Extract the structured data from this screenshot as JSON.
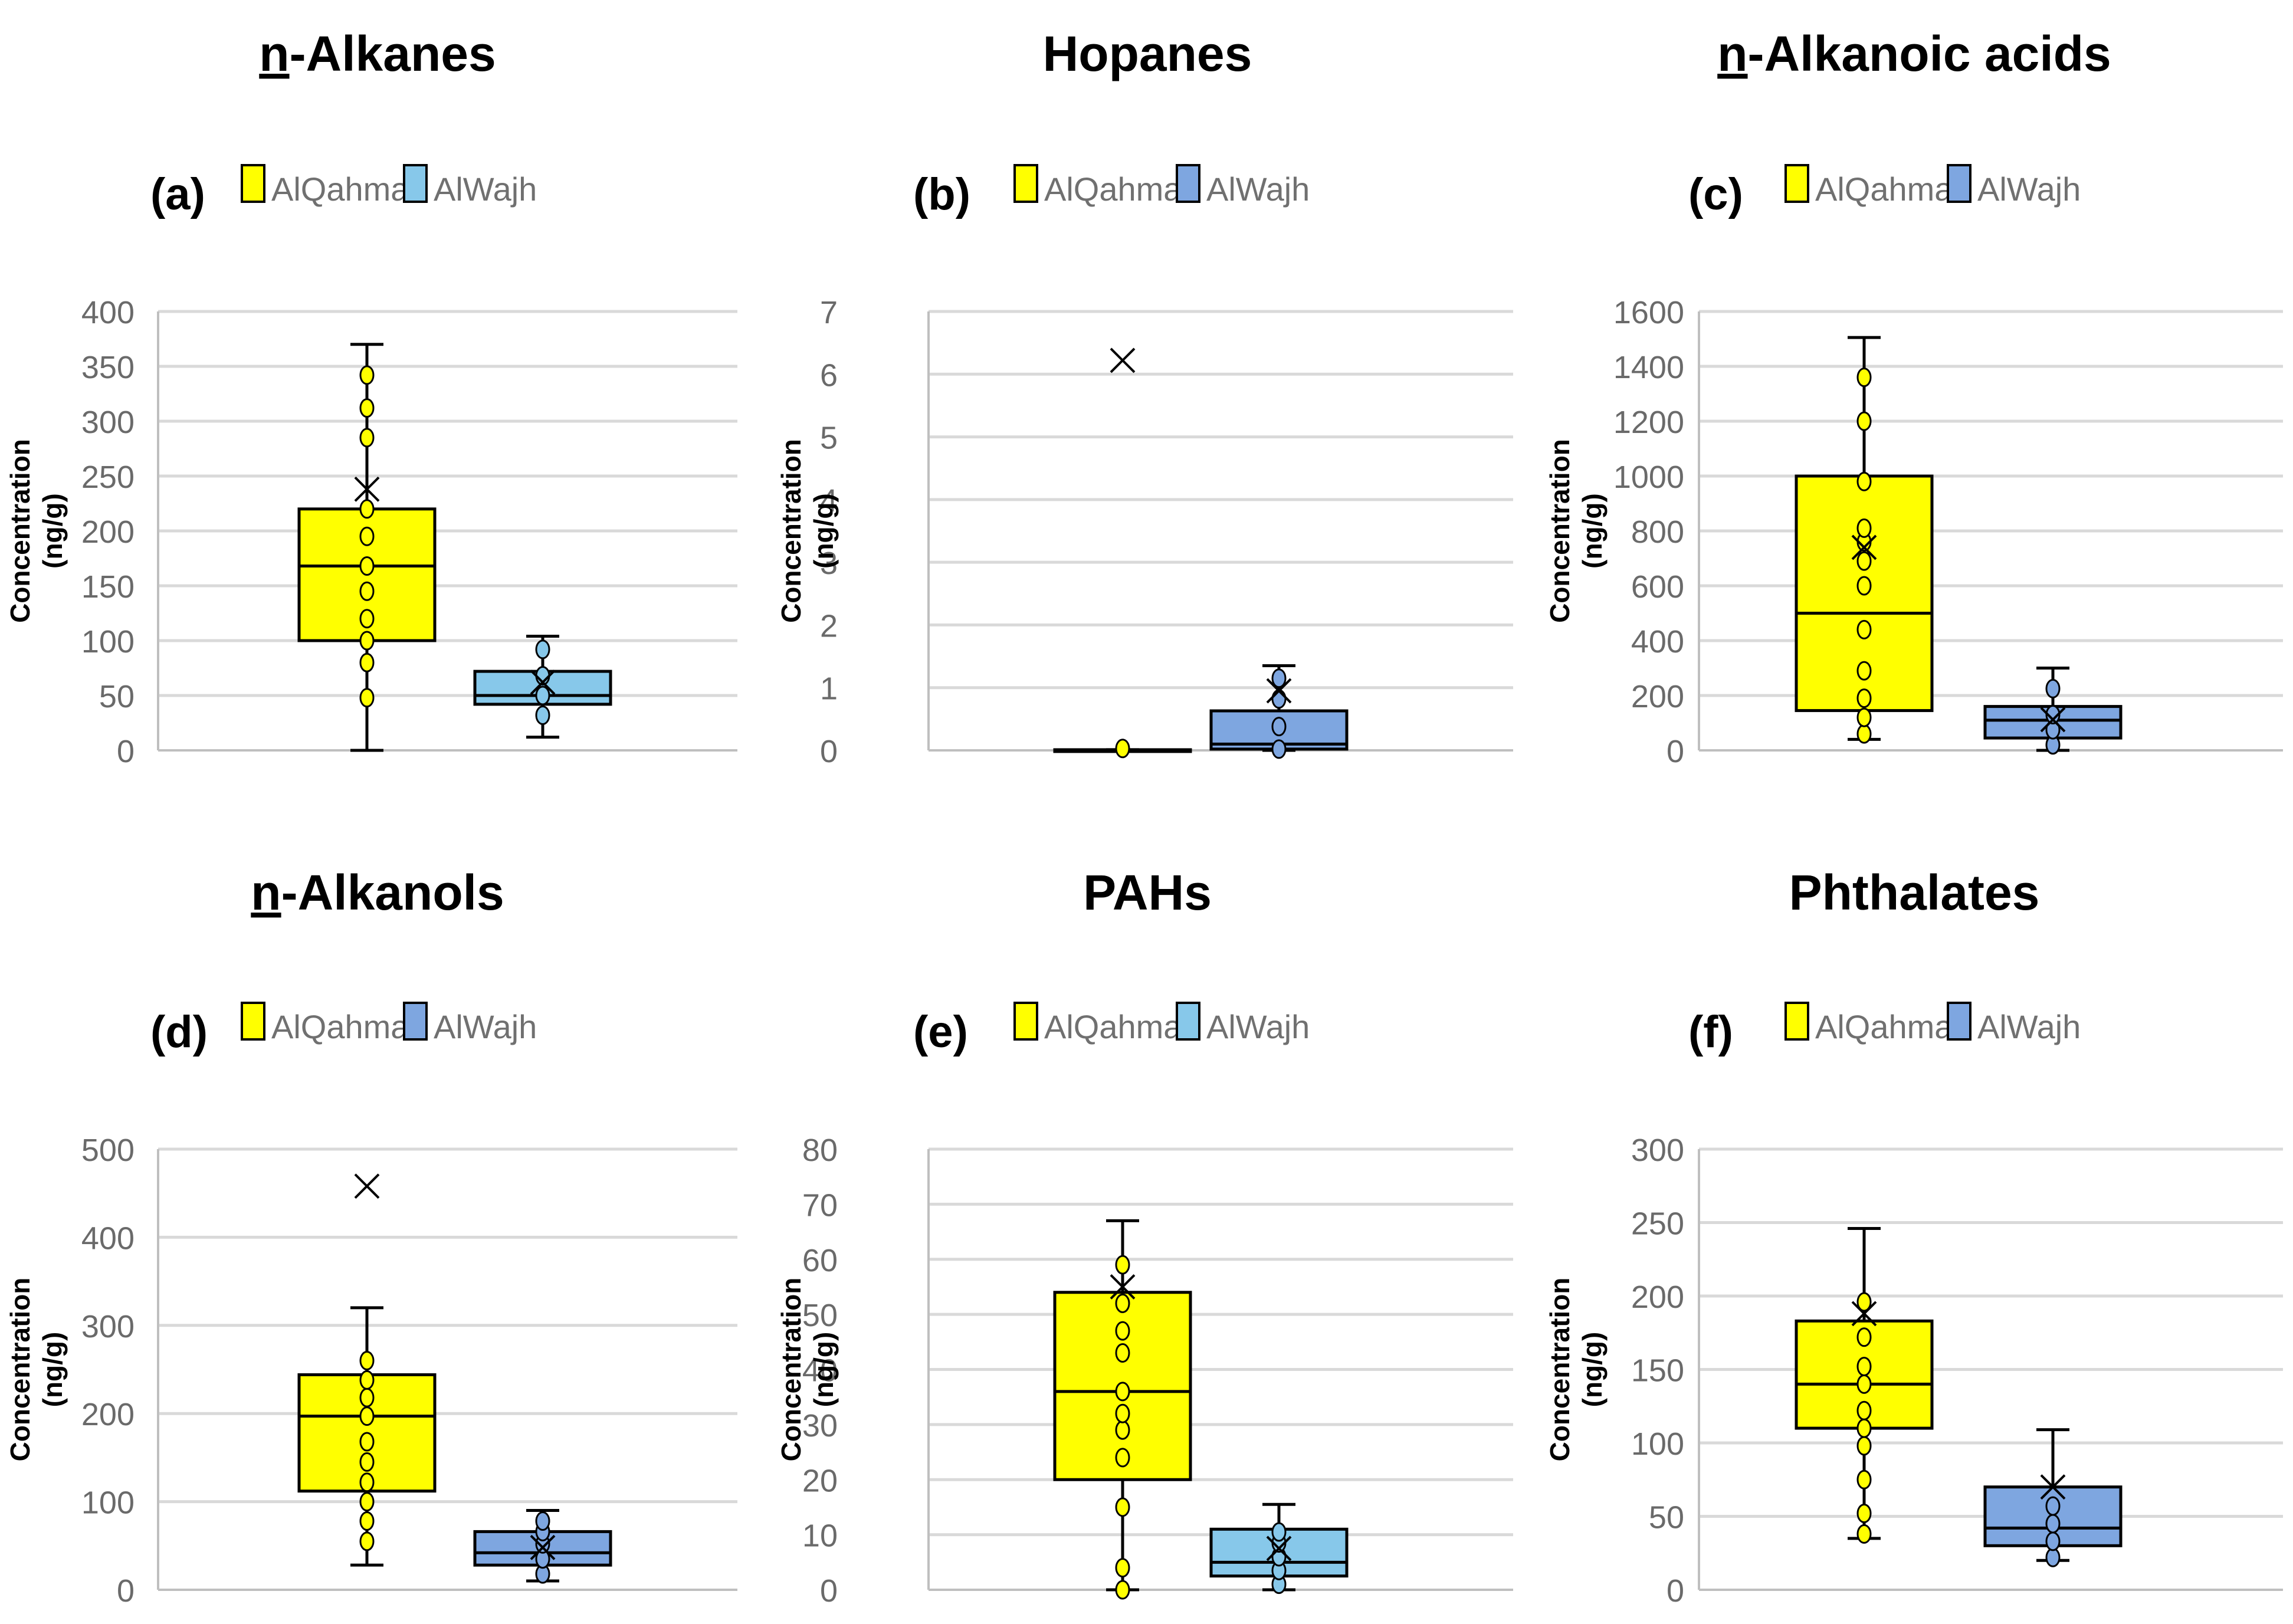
{
  "colors": {
    "alqahma": "#ffff00",
    "alwajh_light": "#87c8ea",
    "alwajh_dark": "#7ea6e0",
    "grid": "#d9d9d9",
    "axis": "#bfbfbf",
    "tick_text": "#6a6a6a"
  },
  "chart_data": [
    {
      "type": "box",
      "panel": "(a)",
      "title_prefix": "n",
      "title_rest": "-Alkanes",
      "ylabel_line1": "Concentration",
      "ylabel_line2": "(ng/g)",
      "ylim": [
        0,
        400
      ],
      "yticks": [
        0,
        50,
        100,
        150,
        200,
        250,
        300,
        350,
        400
      ],
      "legend": [
        "AlQahma",
        "AlWajh"
      ],
      "alwajh_color": "alwajh_light",
      "series": [
        {
          "name": "AlQahma",
          "min": 0,
          "q1": 100,
          "median": 168,
          "q3": 220,
          "max": 370,
          "mean": 238,
          "outliers": [],
          "points": [
            48,
            80,
            100,
            120,
            145,
            168,
            195,
            220,
            285,
            312,
            342
          ]
        },
        {
          "name": "AlWajh",
          "min": 12,
          "q1": 42,
          "median": 50,
          "q3": 72,
          "max": 104,
          "mean": 62,
          "outliers": [],
          "points": [
            32,
            50,
            68,
            92
          ]
        }
      ]
    },
    {
      "type": "box",
      "panel": "(b)",
      "title_prefix": "",
      "title_rest": "Hopanes",
      "ylabel_line1": "Concentration",
      "ylabel_line2": "(ng/g)",
      "ylim": [
        0,
        7
      ],
      "yticks": [
        0,
        1,
        2,
        3,
        4,
        5,
        6,
        7
      ],
      "legend": [
        "AlQahma",
        "AlWajh"
      ],
      "alwajh_color": "alwajh_dark",
      "series": [
        {
          "name": "AlQahma",
          "min": 0,
          "q1": 0,
          "median": 0,
          "q3": 0.01,
          "max": 0.01,
          "mean": 6.22,
          "outliers": [],
          "points": [
            0.03
          ]
        },
        {
          "name": "AlWajh",
          "min": 0,
          "q1": 0.02,
          "median": 0.1,
          "q3": 0.63,
          "max": 1.35,
          "mean": 0.95,
          "outliers": [],
          "points": [
            0.02,
            0.38,
            0.82,
            1.15
          ]
        }
      ]
    },
    {
      "type": "box",
      "panel": "(c)",
      "title_prefix": "n",
      "title_rest": "-Alkanoic acids",
      "ylabel_line1": "Concentration",
      "ylabel_line2": "(ng/g)",
      "ylim": [
        0,
        1600
      ],
      "yticks": [
        0,
        200,
        400,
        600,
        800,
        1000,
        1200,
        1400,
        1600
      ],
      "legend": [
        "AlQahma",
        "AlWajh"
      ],
      "alwajh_color": "alwajh_dark",
      "series": [
        {
          "name": "AlQahma",
          "min": 40,
          "q1": 145,
          "median": 500,
          "q3": 1000,
          "max": 1505,
          "mean": 740,
          "outliers": [],
          "points": [
            60,
            120,
            190,
            290,
            440,
            600,
            690,
            760,
            810,
            980,
            1200,
            1360
          ]
        },
        {
          "name": "AlWajh",
          "min": 0,
          "q1": 45,
          "median": 110,
          "q3": 160,
          "max": 300,
          "mean": 112,
          "outliers": [],
          "points": [
            20,
            75,
            130,
            225
          ]
        }
      ]
    },
    {
      "type": "box",
      "panel": "(d)",
      "title_prefix": "n",
      "title_rest": "-Alkanols",
      "ylabel_line1": "Concentration",
      "ylabel_line2": "(ng/g)",
      "ylim": [
        0,
        500
      ],
      "yticks": [
        0,
        100,
        200,
        300,
        400,
        500
      ],
      "legend": [
        "AlQahma",
        "AlWajh"
      ],
      "alwajh_color": "alwajh_dark",
      "series": [
        {
          "name": "AlQahma",
          "min": 28,
          "q1": 112,
          "median": 197,
          "q3": 244,
          "max": 320,
          "mean": 458,
          "outliers": [],
          "points": [
            55,
            78,
            100,
            122,
            145,
            168,
            197,
            218,
            238,
            260
          ]
        },
        {
          "name": "AlWajh",
          "min": 10,
          "q1": 28,
          "median": 42,
          "q3": 66,
          "max": 90,
          "mean": 48,
          "outliers": [],
          "points": [
            18,
            35,
            52,
            66,
            78
          ]
        }
      ]
    },
    {
      "type": "box",
      "panel": "(e)",
      "title_prefix": "",
      "title_rest": "PAHs",
      "ylabel_line1": "Concentration",
      "ylabel_line2": "(ng/g)",
      "ylim": [
        0,
        80
      ],
      "yticks": [
        0,
        10,
        20,
        30,
        40,
        50,
        60,
        70,
        80
      ],
      "legend": [
        "AlQahma",
        "AlWajh"
      ],
      "alwajh_color": "alwajh_light",
      "series": [
        {
          "name": "AlQahma",
          "min": 0,
          "q1": 20,
          "median": 36,
          "q3": 54,
          "max": 67,
          "mean": 55,
          "outliers": [],
          "points": [
            0,
            4,
            15,
            24,
            29,
            32,
            36,
            43,
            47,
            52,
            59
          ]
        },
        {
          "name": "AlWajh",
          "min": 0,
          "q1": 2.5,
          "median": 5,
          "q3": 11,
          "max": 15.5,
          "mean": 7.5,
          "outliers": [],
          "points": [
            1,
            3.5,
            6,
            8.5,
            10.5
          ]
        }
      ]
    },
    {
      "type": "box",
      "panel": "(f)",
      "title_prefix": "",
      "title_rest": "Phthalates",
      "ylabel_line1": "Concentration",
      "ylabel_line2": "(ng/g)",
      "ylim": [
        0,
        300
      ],
      "yticks": [
        0,
        50,
        100,
        150,
        200,
        250,
        300
      ],
      "legend": [
        "AlQahma",
        "AlWajh"
      ],
      "alwajh_color": "alwajh_dark",
      "series": [
        {
          "name": "AlQahma",
          "min": 35,
          "q1": 110,
          "median": 140,
          "q3": 183,
          "max": 246,
          "mean": 188,
          "outliers": [],
          "points": [
            38,
            52,
            75,
            98,
            110,
            122,
            140,
            152,
            172,
            196
          ]
        },
        {
          "name": "AlWajh",
          "min": 20,
          "q1": 30,
          "median": 42,
          "q3": 70,
          "max": 109,
          "mean": 70,
          "outliers": [],
          "points": [
            22,
            33,
            45,
            57
          ]
        }
      ]
    }
  ]
}
